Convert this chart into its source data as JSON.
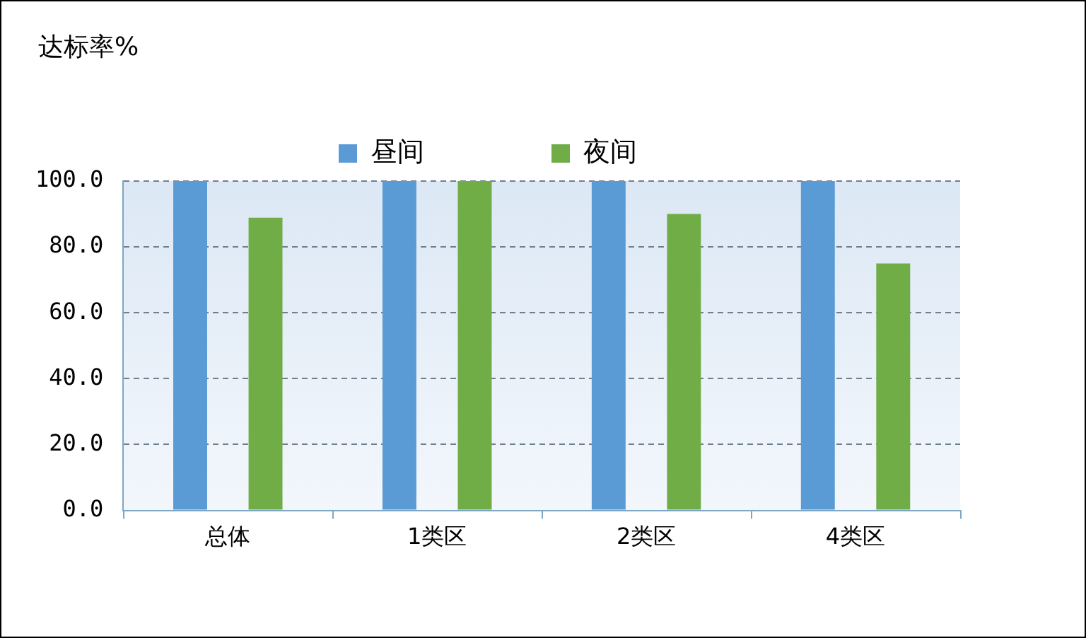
{
  "chart_data": {
    "type": "bar",
    "ylabel": "达标率%",
    "categories": [
      "总体",
      "1类区",
      "2类区",
      "4类区"
    ],
    "series": [
      {
        "name": "昼间",
        "color": "#5b9bd5",
        "values": [
          100,
          100,
          100,
          100
        ]
      },
      {
        "name": "夜间",
        "color": "#70ad47",
        "values": [
          88.9,
          100,
          90.0,
          75.0
        ]
      }
    ],
    "ylim": [
      0,
      100
    ],
    "yticks": [
      {
        "value": 0,
        "label": "0.0"
      },
      {
        "value": 20,
        "label": "20.0"
      },
      {
        "value": 40,
        "label": "40.0"
      },
      {
        "value": 60,
        "label": "60.0"
      },
      {
        "value": 80,
        "label": "80.0"
      },
      {
        "value": 100,
        "label": "100.0"
      }
    ],
    "grid": "y",
    "legend": "top"
  }
}
